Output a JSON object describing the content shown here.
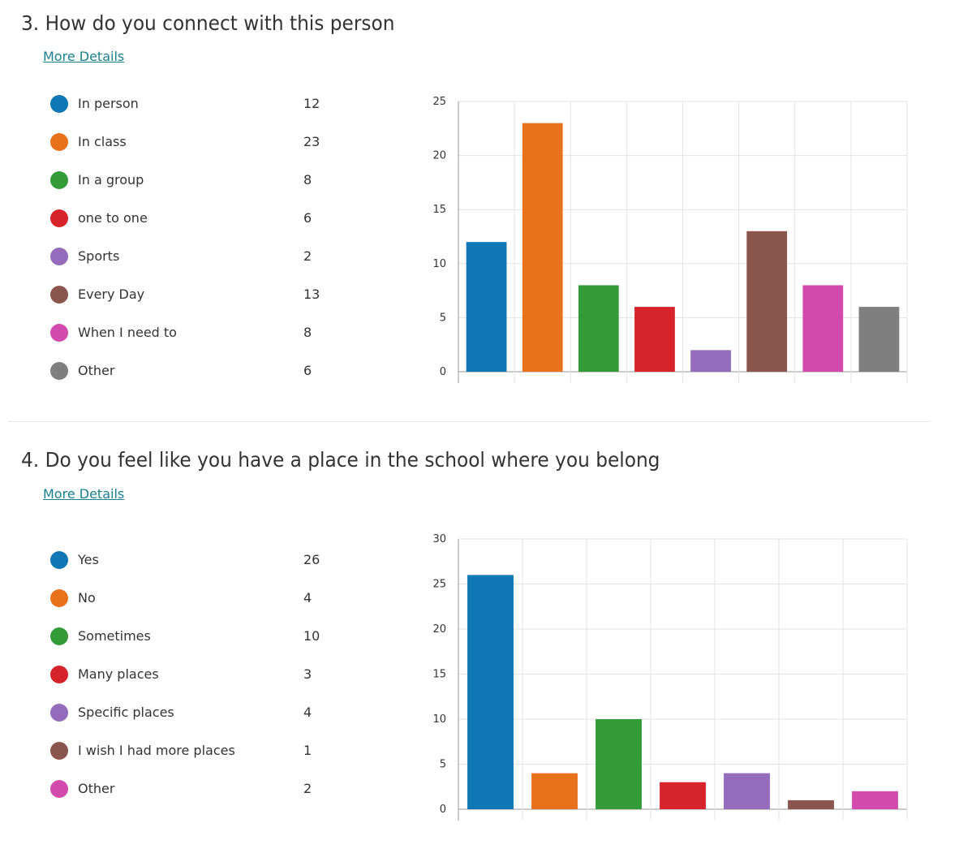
{
  "questions": [
    {
      "title": "3.  How do you connect with this person",
      "more_details": "More Details"
    },
    {
      "title": "4.  Do you feel like you have a place in the school where you belong",
      "more_details": "More Details"
    }
  ],
  "chart_data": [
    {
      "type": "bar",
      "title": "How do you connect with this person",
      "categories": [
        "In person",
        "In class",
        "In a group",
        "one to one",
        "Sports",
        "Every Day",
        "When I need to",
        "Other"
      ],
      "values": [
        12,
        23,
        8,
        6,
        2,
        13,
        8,
        6
      ],
      "colors": [
        "#0f78b4",
        "#e8711c",
        "#339c38",
        "#d7232a",
        "#946cbb",
        "#8a554c",
        "#d34aad",
        "#7f7f7f"
      ],
      "ylim": [
        0,
        25
      ],
      "yticks": [
        0,
        5,
        10,
        15,
        20,
        25
      ],
      "grid": true,
      "xlabel": "",
      "ylabel": ""
    },
    {
      "type": "bar",
      "title": "Do you feel like you have a place in the school where you belong",
      "categories": [
        "Yes",
        "No",
        "Sometimes",
        "Many places",
        "Specific places",
        "I wish I had more places",
        "Other"
      ],
      "values": [
        26,
        4,
        10,
        3,
        4,
        1,
        2
      ],
      "colors": [
        "#0f78b4",
        "#e8711c",
        "#339c38",
        "#d7232a",
        "#946cbb",
        "#8a554c",
        "#d34aad"
      ],
      "ylim": [
        0,
        30
      ],
      "yticks": [
        0,
        5,
        10,
        15,
        20,
        25,
        30
      ],
      "grid": true,
      "xlabel": "",
      "ylabel": ""
    }
  ]
}
